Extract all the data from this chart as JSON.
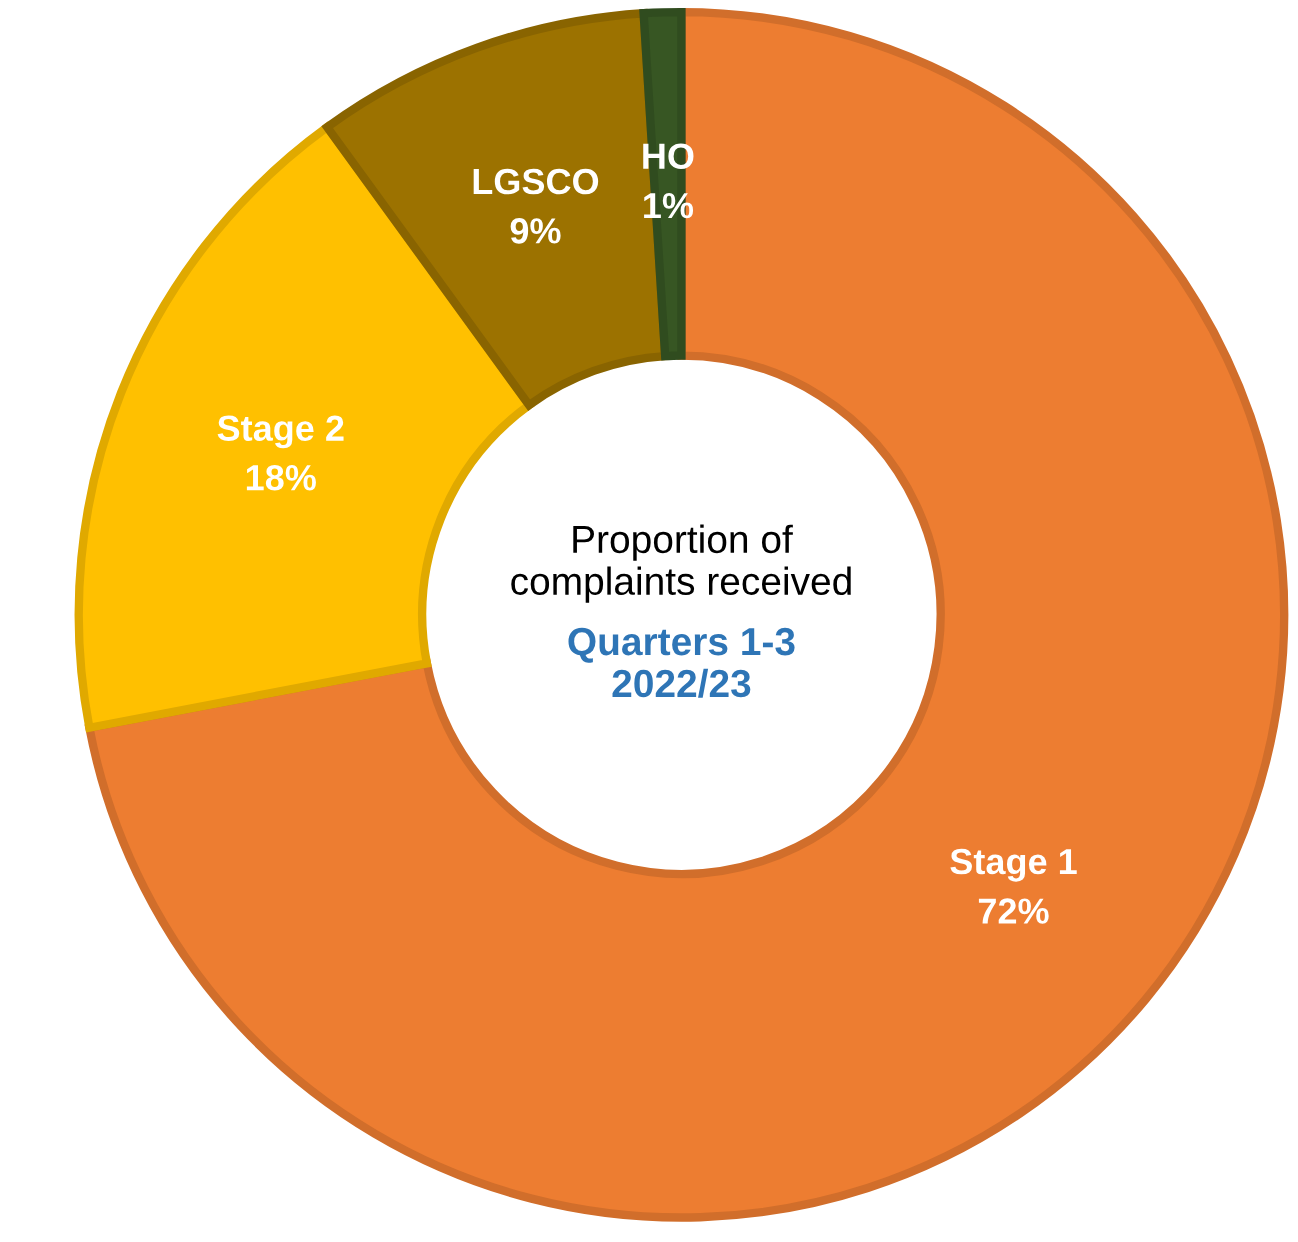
{
  "chart_data": {
    "type": "donut",
    "title": "Proportion of\ncomplaints received",
    "subtitle": "Quarters 1-3\n2022/23",
    "categories": [
      "Stage 1",
      "Stage 2",
      "LGSCO",
      "HO"
    ],
    "values": [
      72,
      18,
      9,
      1
    ],
    "value_labels": [
      "72%",
      "18%",
      "9%",
      "1%"
    ],
    "colors": [
      "#ed7d31",
      "#ffc000",
      "#9c7200",
      "#375623"
    ],
    "legend": false
  }
}
